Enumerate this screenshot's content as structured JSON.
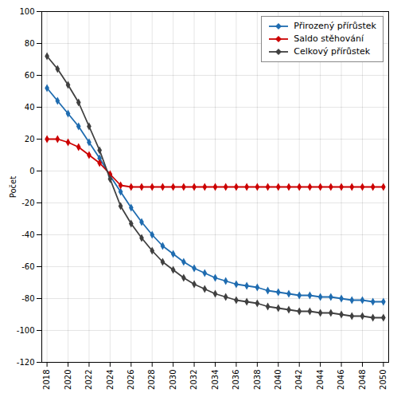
{
  "chart_data": {
    "type": "line",
    "ylabel": "Počet",
    "x": [
      2018,
      2019,
      2020,
      2021,
      2022,
      2023,
      2024,
      2025,
      2026,
      2027,
      2028,
      2029,
      2030,
      2031,
      2032,
      2033,
      2034,
      2035,
      2036,
      2037,
      2038,
      2039,
      2040,
      2041,
      2042,
      2043,
      2044,
      2045,
      2046,
      2047,
      2048,
      2049,
      2050
    ],
    "series": [
      {
        "name": "Přirozený přírůstek",
        "color": "#1f6cb0",
        "marker": "diamond",
        "values": [
          52,
          44,
          36,
          28,
          18,
          8,
          -3,
          -13,
          -23,
          -32,
          -40,
          -47,
          -52,
          -57,
          -61,
          -64,
          -67,
          -69,
          -71,
          -72,
          -73,
          -75,
          -76,
          -77,
          -78,
          -78,
          -79,
          -79,
          -80,
          -81,
          -81,
          -82,
          -82
        ]
      },
      {
        "name": "Saldo stěhování",
        "color": "#cc0000",
        "marker": "diamond",
        "values": [
          20,
          20,
          18,
          15,
          10,
          5,
          -2,
          -9,
          -10,
          -10,
          -10,
          -10,
          -10,
          -10,
          -10,
          -10,
          -10,
          -10,
          -10,
          -10,
          -10,
          -10,
          -10,
          -10,
          -10,
          -10,
          -10,
          -10,
          -10,
          -10,
          -10,
          -10,
          -10
        ]
      },
      {
        "name": "Celkový přírůstek",
        "color": "#404040",
        "marker": "diamond",
        "values": [
          72,
          64,
          54,
          43,
          28,
          13,
          -5,
          -22,
          -33,
          -42,
          -50,
          -57,
          -62,
          -67,
          -71,
          -74,
          -77,
          -79,
          -81,
          -82,
          -83,
          -85,
          -86,
          -87,
          -88,
          -88,
          -89,
          -89,
          -90,
          -91,
          -91,
          -92,
          -92
        ]
      }
    ],
    "xlim": [
      2017.5,
      2050.5
    ],
    "xticks": [
      2018,
      2020,
      2022,
      2024,
      2026,
      2028,
      2030,
      2032,
      2034,
      2036,
      2038,
      2040,
      2042,
      2044,
      2046,
      2048,
      2050
    ],
    "ylim": [
      -120,
      100
    ],
    "yticks": [
      -120,
      -100,
      -80,
      -60,
      -40,
      -20,
      0,
      20,
      40,
      60,
      80,
      100
    ],
    "grid": true,
    "legend": "upper right"
  }
}
